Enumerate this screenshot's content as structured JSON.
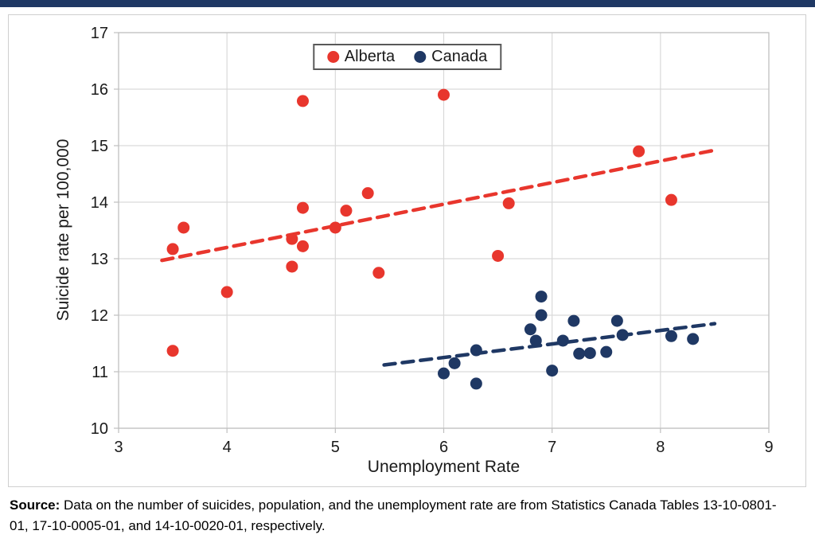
{
  "top_bar_color": "#1f3864",
  "chart_data": {
    "type": "scatter",
    "title": "",
    "xlabel": "Unemployment Rate",
    "ylabel": "Suicide rate per 100,000",
    "xlim": [
      3,
      9
    ],
    "ylim": [
      10,
      17
    ],
    "xticks": [
      3,
      4,
      5,
      6,
      7,
      8,
      9
    ],
    "yticks": [
      10,
      11,
      12,
      13,
      14,
      15,
      16,
      17
    ],
    "grid": true,
    "legend_position": "top-center",
    "series": [
      {
        "name": "Alberta",
        "color": "#e8362d",
        "marker_radius": 7.5,
        "points": [
          [
            3.5,
            13.17
          ],
          [
            3.5,
            11.37
          ],
          [
            3.6,
            13.55
          ],
          [
            4.0,
            12.41
          ],
          [
            4.6,
            12.86
          ],
          [
            4.6,
            13.35
          ],
          [
            4.7,
            13.22
          ],
          [
            4.7,
            13.9
          ],
          [
            4.7,
            15.79
          ],
          [
            5.0,
            13.55
          ],
          [
            5.1,
            13.85
          ],
          [
            5.3,
            14.16
          ],
          [
            5.4,
            12.75
          ],
          [
            6.0,
            15.9
          ],
          [
            6.5,
            13.05
          ],
          [
            6.6,
            13.98
          ],
          [
            7.8,
            14.9
          ],
          [
            8.1,
            14.04
          ]
        ],
        "trend": {
          "x1": 3.4,
          "y1": 12.97,
          "x2": 8.5,
          "y2": 14.92
        }
      },
      {
        "name": "Canada",
        "color": "#1f3864",
        "marker_radius": 7.5,
        "points": [
          [
            6.0,
            10.97
          ],
          [
            6.1,
            11.15
          ],
          [
            6.3,
            10.79
          ],
          [
            6.3,
            11.38
          ],
          [
            6.8,
            11.75
          ],
          [
            6.85,
            11.55
          ],
          [
            6.9,
            12.0
          ],
          [
            6.9,
            12.33
          ],
          [
            7.0,
            11.02
          ],
          [
            7.1,
            11.55
          ],
          [
            7.2,
            11.9
          ],
          [
            7.25,
            11.32
          ],
          [
            7.35,
            11.33
          ],
          [
            7.5,
            11.35
          ],
          [
            7.6,
            11.9
          ],
          [
            7.65,
            11.65
          ],
          [
            8.1,
            11.63
          ],
          [
            8.3,
            11.58
          ]
        ],
        "trend": {
          "x1": 5.45,
          "y1": 11.12,
          "x2": 8.5,
          "y2": 11.85
        }
      }
    ]
  },
  "source": {
    "label": "Source:",
    "text": " Data on the number of suicides, population, and the unemployment rate are from Statistics Canada Tables 13-10-0801-01, 17-10-0005-01, and 14-10-0020-01, respectively."
  }
}
